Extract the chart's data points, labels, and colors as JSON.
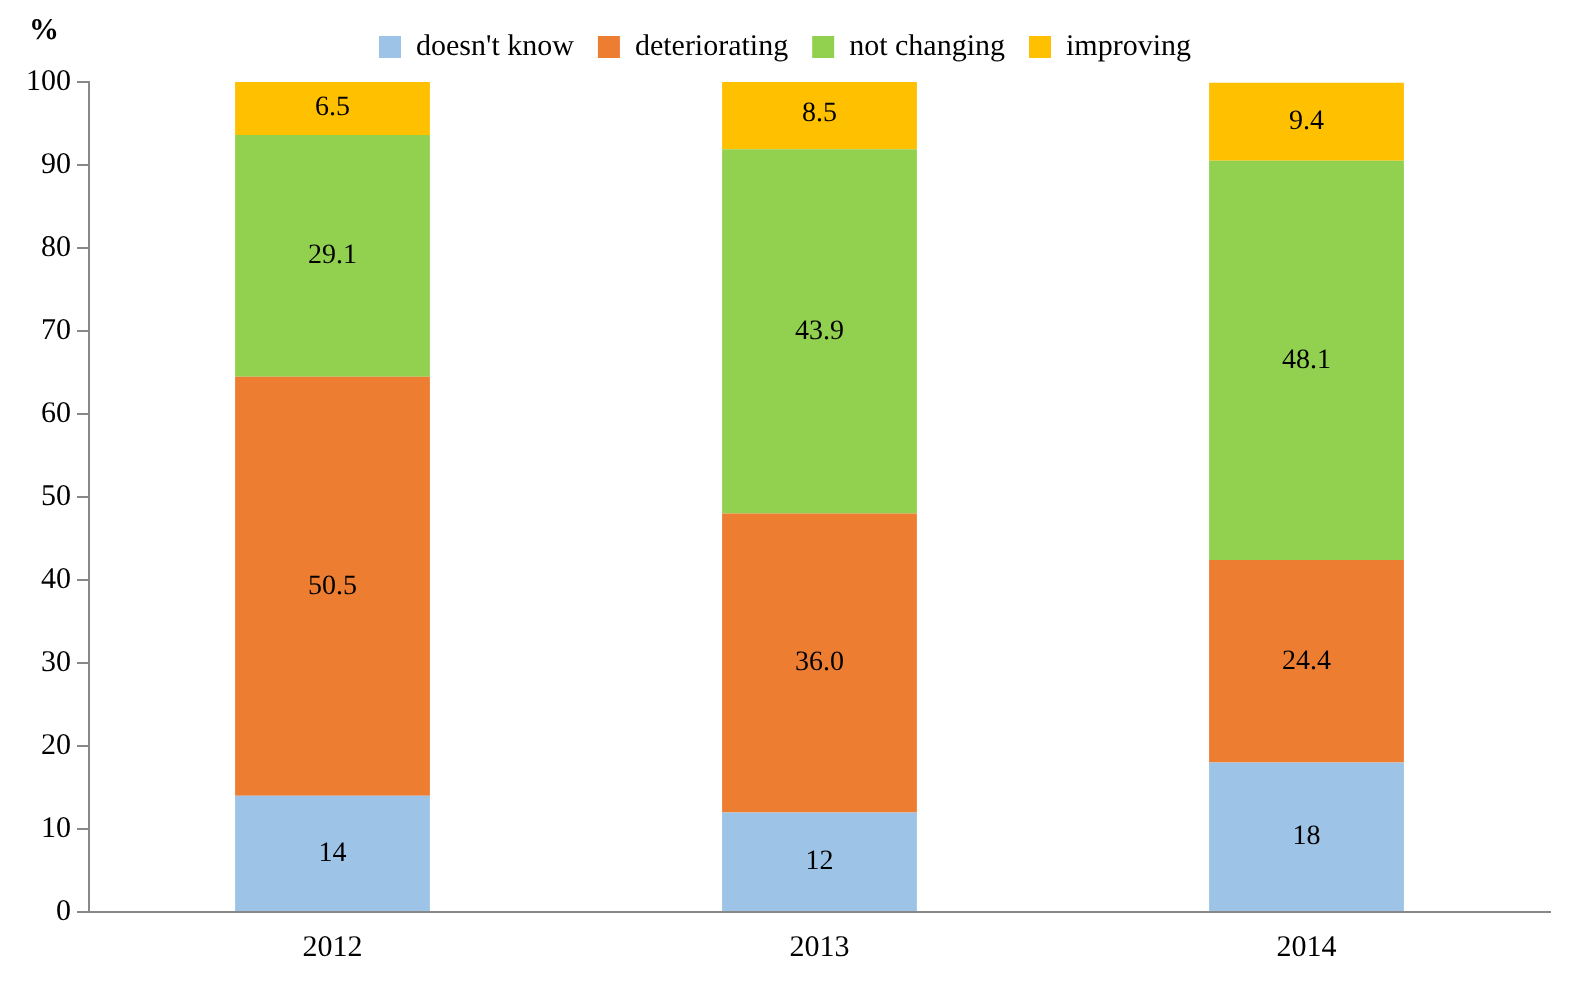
{
  "chart_data": {
    "type": "bar",
    "stacked": true,
    "ylabel": "%",
    "categories": [
      "2012",
      "2013",
      "2014"
    ],
    "series": [
      {
        "name": "doesn't know",
        "color": "#9dc3e6",
        "values": [
          14,
          12,
          18
        ],
        "value_labels": [
          "14",
          "12",
          "18"
        ]
      },
      {
        "name": "deteriorating",
        "color": "#ed7d31",
        "values": [
          50.5,
          36.0,
          24.4
        ],
        "value_labels": [
          "50.5",
          "36.0",
          "24.4"
        ]
      },
      {
        "name": "not changing",
        "color": "#92d050",
        "values": [
          29.1,
          43.9,
          48.1
        ],
        "value_labels": [
          "29.1",
          "43.9",
          "48.1"
        ]
      },
      {
        "name": "improving",
        "color": "#ffc000",
        "values": [
          6.5,
          8.5,
          9.4
        ],
        "value_labels": [
          "6.5",
          "8.5",
          "9.4"
        ]
      }
    ],
    "ylim": [
      0,
      100
    ],
    "yticks": [
      0,
      10,
      20,
      30,
      40,
      50,
      60,
      70,
      80,
      90,
      100
    ],
    "grid": false,
    "legend": "top"
  }
}
